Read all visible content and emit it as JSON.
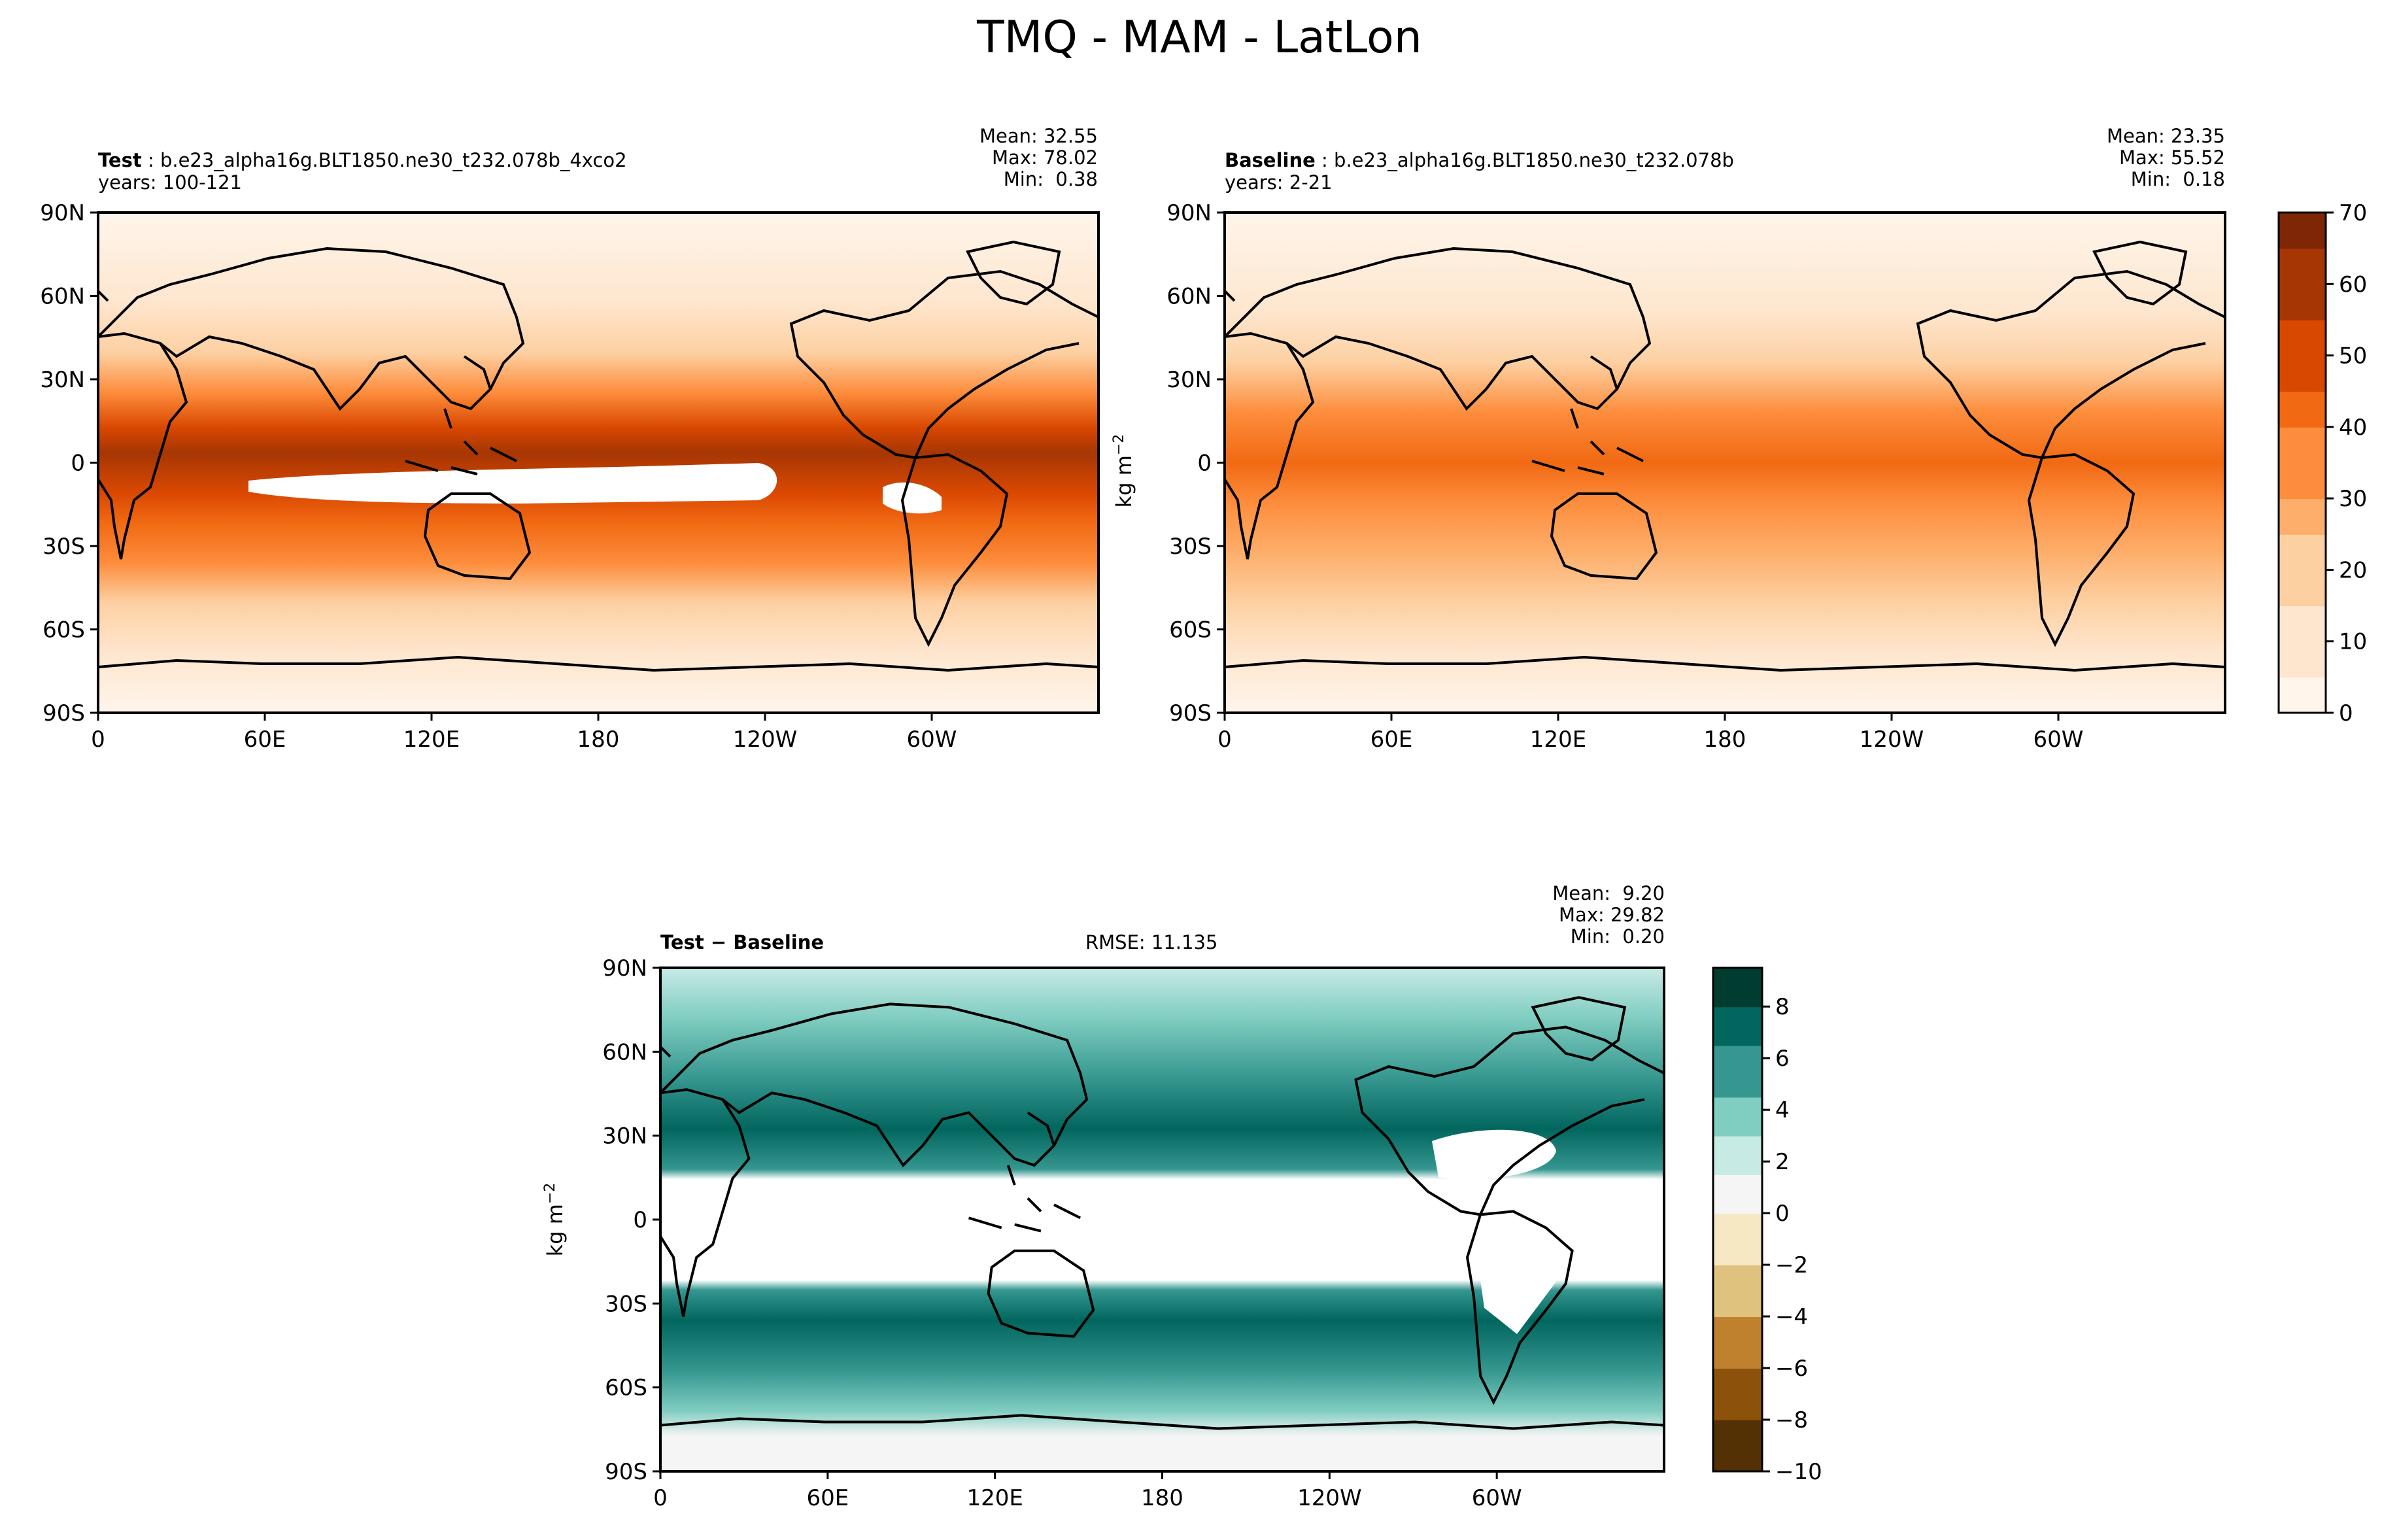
{
  "figure": {
    "title": "TMQ - MAM - LatLon"
  },
  "test_panel": {
    "label": "Test",
    "name": "b.e23_alpha16g.BLT1850.ne30_t232.078b_4xco2",
    "years": "years: 100-121",
    "stats": [
      "Mean: 32.55",
      "Max: 78.02",
      "Min:  0.38"
    ]
  },
  "baseline_panel": {
    "label": "Baseline",
    "name": "b.e23_alpha16g.BLT1850.ne30_t232.078b",
    "years": "years: 2-21",
    "stats": [
      "Mean: 23.35",
      "Max: 55.52",
      "Min:  0.18"
    ]
  },
  "diff_panel": {
    "label": "Test − Baseline",
    "rmse": "RMSE: 11.135",
    "stats": [
      "Mean:  9.20",
      "Max: 29.82",
      "Min:  0.20"
    ]
  },
  "colors": {
    "orange_scale": [
      "#fff5eb",
      "#fee6ce",
      "#fdd0a2",
      "#fdae6b",
      "#fd8d3c",
      "#f16913",
      "#d94801",
      "#a63603",
      "#7f2704"
    ],
    "brbg_scale": [
      "#543005",
      "#8c510a",
      "#bf812d",
      "#dfc27d",
      "#f6e8c3",
      "#f5f5f5",
      "#c7eae5",
      "#80cdc1",
      "#35978f",
      "#01665e",
      "#003c30"
    ]
  },
  "chart_data": [
    {
      "type": "heatmap",
      "title": "Test",
      "xlabel": "",
      "ylabel": "",
      "x_ticks": [
        "0",
        "60E",
        "120E",
        "180",
        "120W",
        "60W"
      ],
      "y_ticks": [
        "90N",
        "60N",
        "30N",
        "0",
        "30S",
        "60S",
        "90S"
      ],
      "xlim": [
        0,
        360
      ],
      "ylim": [
        -90,
        90
      ],
      "clim": [
        0,
        70
      ]
    },
    {
      "type": "heatmap",
      "title": "Baseline",
      "xlabel": "",
      "ylabel": "",
      "x_ticks": [
        "0",
        "60E",
        "120E",
        "180",
        "120W",
        "60W"
      ],
      "y_ticks": [
        "90N",
        "60N",
        "30N",
        "0",
        "30S",
        "60S",
        "90S"
      ],
      "xlim": [
        0,
        360
      ],
      "ylim": [
        -90,
        90
      ],
      "clim": [
        0,
        70
      ],
      "colorbar": {
        "label": "kg m$^{-2}$",
        "ticks": [
          "0",
          "10",
          "20",
          "30",
          "40",
          "50",
          "60",
          "70"
        ]
      }
    },
    {
      "type": "heatmap",
      "title": "Test − Baseline",
      "xlabel": "",
      "ylabel": "kg m$^{-2}$",
      "x_ticks": [
        "0",
        "60E",
        "120E",
        "180",
        "120W",
        "60W"
      ],
      "y_ticks": [
        "90N",
        "60N",
        "30N",
        "0",
        "30S",
        "60S",
        "90S"
      ],
      "xlim": [
        0,
        360
      ],
      "ylim": [
        -90,
        90
      ],
      "clim": [
        -10,
        9.5
      ],
      "colorbar": {
        "ticks": [
          "8",
          "6",
          "4",
          "2",
          "0",
          "−2",
          "−4",
          "−6",
          "−8",
          "−10"
        ]
      }
    }
  ]
}
